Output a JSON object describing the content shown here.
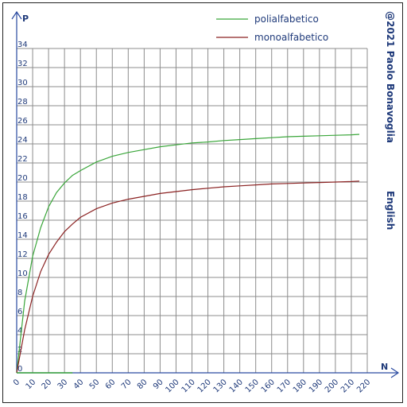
{
  "chart_data": {
    "type": "line",
    "xlabel": "N",
    "ylabel": "P",
    "xlim": [
      0,
      220
    ],
    "ylim": [
      0,
      34
    ],
    "x_ticks": [
      0,
      10,
      20,
      30,
      40,
      50,
      60,
      70,
      80,
      90,
      100,
      110,
      120,
      130,
      140,
      150,
      160,
      170,
      180,
      190,
      200,
      210,
      220
    ],
    "y_ticks": [
      0,
      2,
      4,
      6,
      8,
      10,
      12,
      14,
      16,
      18,
      20,
      22,
      24,
      26,
      28,
      30,
      32,
      34
    ],
    "grid": true,
    "legend": "top-right",
    "series": [
      {
        "name": "polialfabetico",
        "color": "#3aa63a",
        "x": [
          0,
          5,
          10,
          15,
          20,
          25,
          30,
          35,
          40,
          50,
          60,
          70,
          80,
          90,
          100,
          110,
          120,
          130,
          140,
          150,
          160,
          170,
          180,
          190,
          200,
          210,
          215
        ],
        "y": [
          0,
          7.5,
          12.2,
          15.2,
          17.4,
          18.9,
          19.9,
          20.7,
          21.2,
          22.1,
          22.7,
          23.1,
          23.4,
          23.7,
          23.9,
          24.1,
          24.2,
          24.35,
          24.45,
          24.55,
          24.65,
          24.75,
          24.8,
          24.85,
          24.9,
          24.95,
          25.0
        ]
      },
      {
        "name": "monoalfabetico",
        "color": "#8b2222",
        "x": [
          0,
          5,
          10,
          15,
          20,
          25,
          30,
          35,
          40,
          50,
          60,
          70,
          80,
          90,
          100,
          110,
          120,
          130,
          140,
          150,
          160,
          170,
          180,
          190,
          200,
          210,
          215
        ],
        "y": [
          0,
          4.5,
          8.0,
          10.6,
          12.4,
          13.7,
          14.8,
          15.6,
          16.3,
          17.2,
          17.8,
          18.2,
          18.5,
          18.8,
          19.0,
          19.2,
          19.35,
          19.5,
          19.6,
          19.7,
          19.8,
          19.85,
          19.9,
          19.95,
          20.0,
          20.05,
          20.1
        ]
      }
    ]
  },
  "side_labels": {
    "copyright": "@2021 Paolo Bonavoglia",
    "language": "English"
  }
}
